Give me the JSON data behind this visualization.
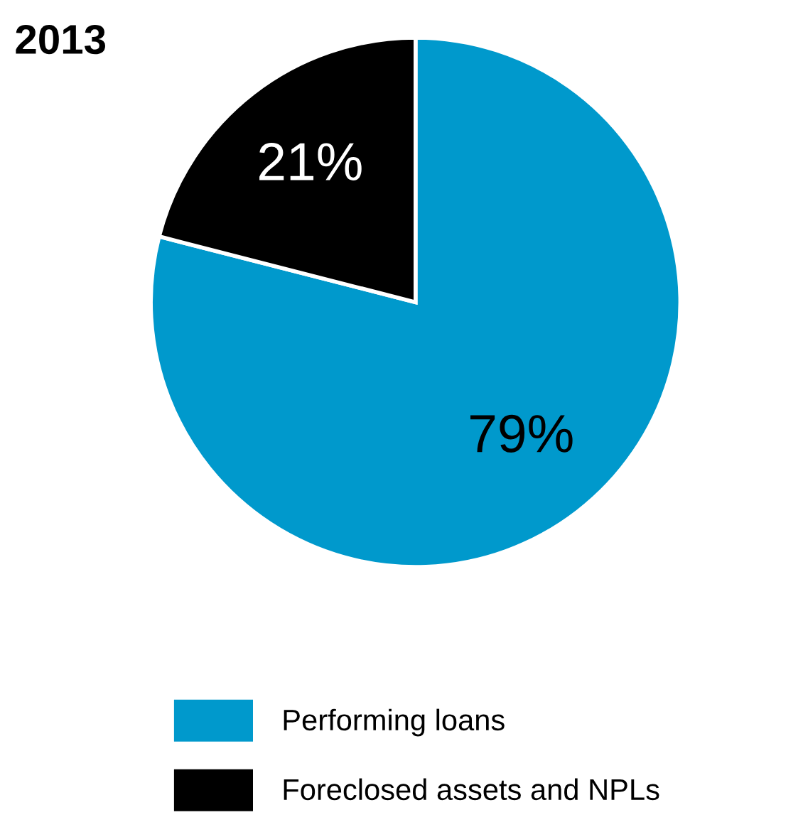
{
  "chart_data": {
    "type": "pie",
    "title": "2013",
    "categories": [
      "Performing loans",
      "Foreclosed assets and NPLs"
    ],
    "values": [
      79,
      21
    ],
    "colors": [
      "#0099cc",
      "#000000"
    ],
    "value_labels": [
      "79%",
      "21%"
    ],
    "legend": "bottom"
  }
}
